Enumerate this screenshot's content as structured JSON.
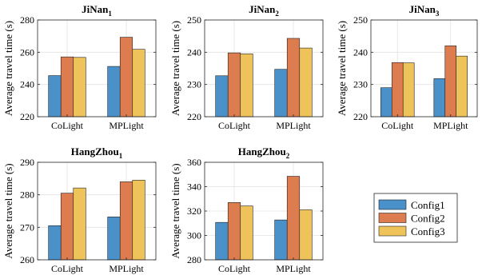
{
  "colors": {
    "Config1": "#4a90c9",
    "Config2": "#dc7c4f",
    "Config3": "#eec35a"
  },
  "legend": {
    "placement": "bottom-right",
    "entries": [
      "Config1",
      "Config2",
      "Config3"
    ]
  },
  "chart_data": [
    {
      "type": "bar",
      "title": "JiNan",
      "title_sub": "1",
      "ylabel": "Average travel time (s)",
      "categories": [
        "CoLight",
        "MPLight"
      ],
      "ylim": [
        220,
        280
      ],
      "yticks": [
        220,
        240,
        260,
        280
      ],
      "grid": true,
      "series": [
        {
          "name": "Config1",
          "values": [
            245.5,
            251.2
          ]
        },
        {
          "name": "Config2",
          "values": [
            257.1,
            269.3
          ]
        },
        {
          "name": "Config3",
          "values": [
            256.8,
            261.8
          ]
        }
      ]
    },
    {
      "type": "bar",
      "title": "JiNan",
      "title_sub": "2",
      "ylabel": "Average travel time (s)",
      "categories": [
        "CoLight",
        "MPLight"
      ],
      "ylim": [
        220,
        250
      ],
      "yticks": [
        220,
        230,
        240,
        250
      ],
      "grid": true,
      "series": [
        {
          "name": "Config1",
          "values": [
            232.7,
            234.7
          ]
        },
        {
          "name": "Config2",
          "values": [
            239.8,
            244.3
          ]
        },
        {
          "name": "Config3",
          "values": [
            239.5,
            241.3
          ]
        }
      ]
    },
    {
      "type": "bar",
      "title": "JiNan",
      "title_sub": "3",
      "ylabel": "Average travel time (s)",
      "categories": [
        "CoLight",
        "MPLight"
      ],
      "ylim": [
        220,
        250
      ],
      "yticks": [
        220,
        230,
        240,
        250
      ],
      "grid": true,
      "series": [
        {
          "name": "Config1",
          "values": [
            229.0,
            231.8
          ]
        },
        {
          "name": "Config2",
          "values": [
            236.8,
            242.0
          ]
        },
        {
          "name": "Config3",
          "values": [
            236.7,
            238.8
          ]
        }
      ]
    },
    {
      "type": "bar",
      "title": "HangZhou",
      "title_sub": "1",
      "ylabel": "Average travel time (s)",
      "categories": [
        "CoLight",
        "MPLight"
      ],
      "ylim": [
        260,
        290
      ],
      "yticks": [
        260,
        270,
        280,
        290
      ],
      "grid": true,
      "series": [
        {
          "name": "Config1",
          "values": [
            270.5,
            273.2
          ]
        },
        {
          "name": "Config2",
          "values": [
            280.5,
            284.0
          ]
        },
        {
          "name": "Config3",
          "values": [
            282.1,
            284.5
          ]
        }
      ]
    },
    {
      "type": "bar",
      "title": "HangZhou",
      "title_sub": "2",
      "ylabel": "Average travel time (s)",
      "categories": [
        "CoLight",
        "MPLight"
      ],
      "ylim": [
        280,
        360
      ],
      "yticks": [
        280,
        300,
        320,
        340,
        360
      ],
      "grid": true,
      "series": [
        {
          "name": "Config1",
          "values": [
            310.7,
            312.7
          ]
        },
        {
          "name": "Config2",
          "values": [
            327.0,
            348.5
          ]
        },
        {
          "name": "Config3",
          "values": [
            324.2,
            321.0
          ]
        }
      ]
    }
  ]
}
